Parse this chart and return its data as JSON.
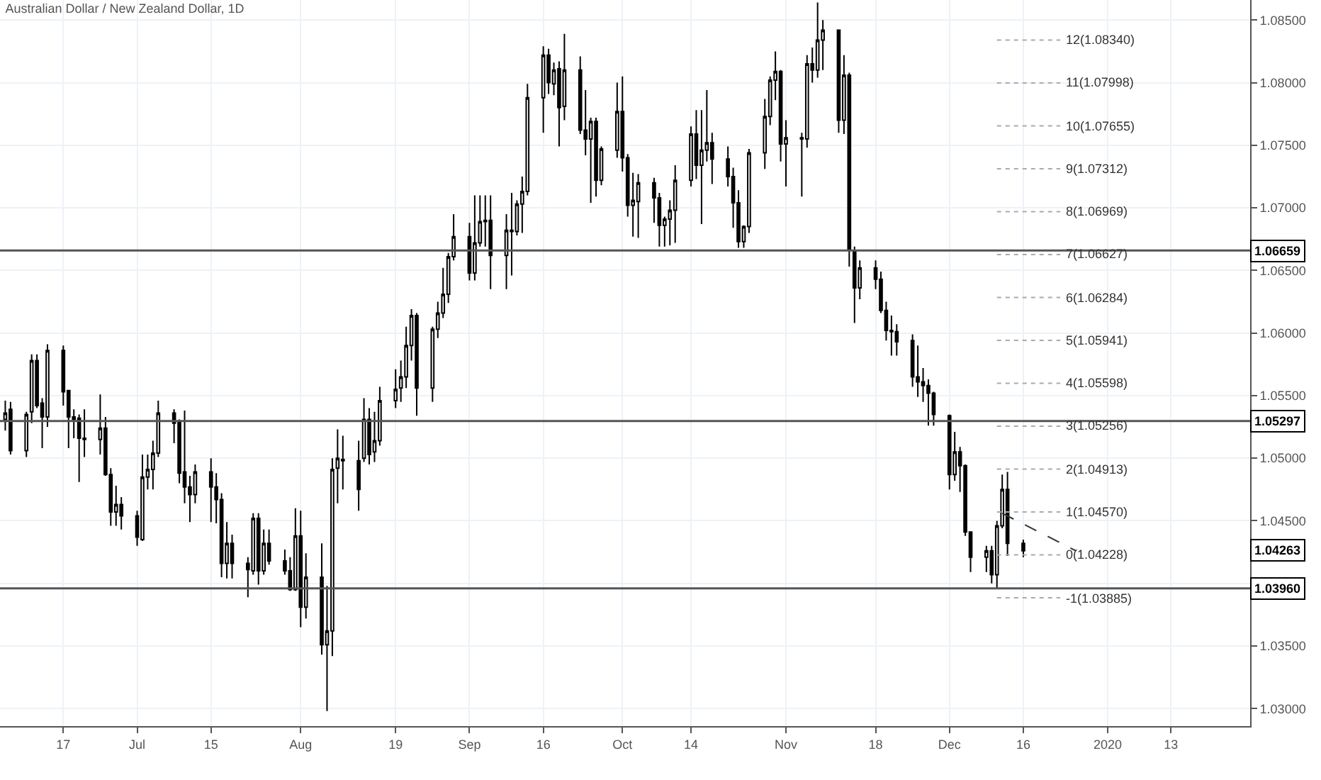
{
  "chart_data": {
    "type": "candlestick",
    "title": "Australian Dollar / New Zealand Dollar, 1D",
    "color": "#000000",
    "grid": true,
    "x": [
      "2019-06-06",
      "2019-06-07",
      "2019-06-10",
      "2019-06-11",
      "2019-06-12",
      "2019-06-13",
      "2019-06-14",
      "2019-06-17",
      "2019-06-18",
      "2019-06-19",
      "2019-06-20",
      "2019-06-21",
      "2019-06-24",
      "2019-06-25",
      "2019-06-26",
      "2019-06-27",
      "2019-06-28",
      "2019-07-01",
      "2019-07-02",
      "2019-07-03",
      "2019-07-04",
      "2019-07-05",
      "2019-07-08",
      "2019-07-09",
      "2019-07-10",
      "2019-07-11",
      "2019-07-12",
      "2019-07-15",
      "2019-07-16",
      "2019-07-17",
      "2019-07-18",
      "2019-07-19",
      "2019-07-22",
      "2019-07-23",
      "2019-07-24",
      "2019-07-25",
      "2019-07-26",
      "2019-07-29",
      "2019-07-30",
      "2019-07-31",
      "2019-08-01",
      "2019-08-02",
      "2019-08-05",
      "2019-08-06",
      "2019-08-07",
      "2019-08-08",
      "2019-08-09",
      "2019-08-12",
      "2019-08-13",
      "2019-08-14",
      "2019-08-15",
      "2019-08-16",
      "2019-08-19",
      "2019-08-20",
      "2019-08-21",
      "2019-08-22",
      "2019-08-23",
      "2019-08-26",
      "2019-08-27",
      "2019-08-28",
      "2019-08-29",
      "2019-08-30",
      "2019-09-02",
      "2019-09-03",
      "2019-09-04",
      "2019-09-05",
      "2019-09-06",
      "2019-09-09",
      "2019-09-10",
      "2019-09-11",
      "2019-09-12",
      "2019-09-13",
      "2019-09-16",
      "2019-09-17",
      "2019-09-18",
      "2019-09-19",
      "2019-09-20",
      "2019-09-23",
      "2019-09-24",
      "2019-09-25",
      "2019-09-26",
      "2019-09-27",
      "2019-09-30",
      "2019-10-01",
      "2019-10-02",
      "2019-10-03",
      "2019-10-04",
      "2019-10-07",
      "2019-10-08",
      "2019-10-09",
      "2019-10-10",
      "2019-10-11",
      "2019-10-14",
      "2019-10-15",
      "2019-10-16",
      "2019-10-17",
      "2019-10-18",
      "2019-10-21",
      "2019-10-22",
      "2019-10-23",
      "2019-10-24",
      "2019-10-25",
      "2019-10-28",
      "2019-10-29",
      "2019-10-30",
      "2019-10-31",
      "2019-11-01",
      "2019-11-04",
      "2019-11-05",
      "2019-11-06",
      "2019-11-07",
      "2019-11-08",
      "2019-11-11",
      "2019-11-12",
      "2019-11-13",
      "2019-11-14",
      "2019-11-15",
      "2019-11-18",
      "2019-11-19",
      "2019-11-20",
      "2019-11-21",
      "2019-11-22",
      "2019-11-25",
      "2019-11-26",
      "2019-11-27",
      "2019-11-28",
      "2019-11-29",
      "2019-12-02",
      "2019-12-03",
      "2019-12-04",
      "2019-12-05",
      "2019-12-06",
      "2019-12-09",
      "2019-12-10",
      "2019-12-11",
      "2019-12-12",
      "2019-12-13",
      "2019-12-16"
    ],
    "ohlc": [
      [
        1.0531,
        1.0546,
        1.0522,
        1.0536
      ],
      [
        1.0539,
        1.0545,
        1.0503,
        1.0506
      ],
      [
        1.0506,
        1.0537,
        1.0501,
        1.0535
      ],
      [
        1.0537,
        1.0583,
        1.0528,
        1.0578
      ],
      [
        1.0578,
        1.0583,
        1.054,
        1.0542
      ],
      [
        1.0544,
        1.0548,
        1.0508,
        1.0533
      ],
      [
        1.0533,
        1.0591,
        1.0525,
        1.0586
      ],
      [
        1.0586,
        1.059,
        1.0542,
        1.0553
      ],
      [
        1.0554,
        1.0554,
        1.0508,
        1.0533
      ],
      [
        1.0533,
        1.0539,
        1.0516,
        1.0531
      ],
      [
        1.0532,
        1.0535,
        1.0481,
        1.0516
      ],
      [
        1.0516,
        1.0539,
        1.0501,
        1.0515
      ],
      [
        1.0515,
        1.0551,
        1.0503,
        1.0524
      ],
      [
        1.0524,
        1.0533,
        1.0486,
        1.0487
      ],
      [
        1.0487,
        1.0492,
        1.0446,
        1.0457
      ],
      [
        1.0457,
        1.0478,
        1.0446,
        1.0463
      ],
      [
        1.0463,
        1.0469,
        1.0443,
        1.0454
      ],
      [
        1.0454,
        1.0458,
        1.043,
        1.0437
      ],
      [
        1.0435,
        1.0503,
        1.0434,
        1.0485
      ],
      [
        1.0485,
        1.0503,
        1.0475,
        1.0491
      ],
      [
        1.0491,
        1.0514,
        1.0475,
        1.0504
      ],
      [
        1.0504,
        1.0546,
        1.0501,
        1.0536
      ],
      [
        1.0536,
        1.0539,
        1.0512,
        1.0528
      ],
      [
        1.0529,
        1.0531,
        1.048,
        1.0488
      ],
      [
        1.0489,
        1.0538,
        1.0464,
        1.0477
      ],
      [
        1.0477,
        1.0486,
        1.0449,
        1.0471
      ],
      [
        1.0471,
        1.0495,
        1.0464,
        1.0489
      ],
      [
        1.0489,
        1.05,
        1.0449,
        1.0477
      ],
      [
        1.0477,
        1.0488,
        1.0448,
        1.0467
      ],
      [
        1.0467,
        1.0472,
        1.0405,
        1.0416
      ],
      [
        1.0416,
        1.0449,
        1.0404,
        1.0432
      ],
      [
        1.0432,
        1.0439,
        1.0404,
        1.0416
      ],
      [
        1.0416,
        1.0421,
        1.0389,
        1.0411
      ],
      [
        1.041,
        1.0456,
        1.0407,
        1.0452
      ],
      [
        1.0452,
        1.0456,
        1.0399,
        1.041
      ],
      [
        1.041,
        1.0443,
        1.0407,
        1.0432
      ],
      [
        1.0432,
        1.0443,
        1.0415,
        1.0418
      ],
      [
        1.0418,
        1.0427,
        1.0407,
        1.041
      ],
      [
        1.041,
        1.0421,
        1.0394,
        1.0395
      ],
      [
        1.0395,
        1.046,
        1.0394,
        1.0438
      ],
      [
        1.0438,
        1.0458,
        1.0365,
        1.0381
      ],
      [
        1.0381,
        1.0424,
        1.0372,
        1.0405
      ],
      [
        1.0405,
        1.0432,
        1.0343,
        1.0351
      ],
      [
        1.0351,
        1.0398,
        1.0298,
        1.0362
      ],
      [
        1.0362,
        1.05,
        1.0342,
        1.0491
      ],
      [
        1.0492,
        1.0523,
        1.0464,
        1.05
      ],
      [
        1.0499,
        1.0518,
        1.0475,
        1.0498
      ],
      [
        1.0498,
        1.0514,
        1.0458,
        1.0475
      ],
      [
        1.05,
        1.0548,
        1.0497,
        1.0531
      ],
      [
        1.0531,
        1.054,
        1.0495,
        1.0503
      ],
      [
        1.0505,
        1.0537,
        1.0497,
        1.0514
      ],
      [
        1.0514,
        1.0557,
        1.051,
        1.0546
      ],
      [
        1.0546,
        1.0571,
        1.054,
        1.0555
      ],
      [
        1.0556,
        1.0578,
        1.0545,
        1.0565
      ],
      [
        1.0565,
        1.0605,
        1.0556,
        1.059
      ],
      [
        1.059,
        1.0619,
        1.0578,
        1.0614
      ],
      [
        1.0614,
        1.0616,
        1.0534,
        1.0556
      ],
      [
        1.0556,
        1.0605,
        1.0545,
        1.0603
      ],
      [
        1.0603,
        1.0625,
        1.0596,
        1.0616
      ],
      [
        1.0616,
        1.0652,
        1.0612,
        1.0631
      ],
      [
        1.0631,
        1.0664,
        1.0624,
        1.0661
      ],
      [
        1.0661,
        1.0695,
        1.0658,
        1.0677
      ],
      [
        1.0677,
        1.0688,
        1.0642,
        1.0648
      ],
      [
        1.0648,
        1.071,
        1.0642,
        1.0672
      ],
      [
        1.0672,
        1.071,
        1.0669,
        1.0689
      ],
      [
        1.069,
        1.071,
        1.0669,
        1.0689
      ],
      [
        1.069,
        1.071,
        1.0635,
        1.0662
      ],
      [
        1.0662,
        1.0695,
        1.0635,
        1.0682
      ],
      [
        1.0682,
        1.0712,
        1.0646,
        1.0681
      ],
      [
        1.0681,
        1.0706,
        1.0678,
        1.0703
      ],
      [
        1.0703,
        1.0725,
        1.068,
        1.0713
      ],
      [
        1.0713,
        1.0799,
        1.071,
        1.0788
      ],
      [
        1.0788,
        1.0829,
        1.076,
        1.0822
      ],
      [
        1.0822,
        1.0827,
        1.0791,
        1.08
      ],
      [
        1.0799,
        1.0816,
        1.079,
        1.081
      ],
      [
        1.0811,
        1.0817,
        1.0749,
        1.078
      ],
      [
        1.0781,
        1.0839,
        1.077,
        1.081
      ],
      [
        1.081,
        1.0821,
        1.0759,
        1.0762
      ],
      [
        1.0762,
        1.0794,
        1.0742,
        1.0755
      ],
      [
        1.0755,
        1.0772,
        1.0704,
        1.0769
      ],
      [
        1.0769,
        1.0772,
        1.0709,
        1.0722
      ],
      [
        1.0722,
        1.0749,
        1.0718,
        1.0747
      ],
      [
        1.0746,
        1.08,
        1.074,
        1.0777
      ],
      [
        1.0777,
        1.0805,
        1.0729,
        1.074
      ],
      [
        1.074,
        1.0743,
        1.0693,
        1.0702
      ],
      [
        1.0702,
        1.0728,
        1.0677,
        1.0706
      ],
      [
        1.0705,
        1.0727,
        1.0676,
        1.072
      ],
      [
        1.072,
        1.0724,
        1.0688,
        1.0708
      ],
      [
        1.0708,
        1.0712,
        1.0669,
        1.0686
      ],
      [
        1.0686,
        1.0693,
        1.0669,
        1.0691
      ],
      [
        1.0691,
        1.0706,
        1.067,
        1.0698
      ],
      [
        1.0698,
        1.0734,
        1.0672,
        1.0722
      ],
      [
        1.0722,
        1.0765,
        1.0717,
        1.0759
      ],
      [
        1.0759,
        1.0778,
        1.0723,
        1.0734
      ],
      [
        1.0734,
        1.0778,
        1.0687,
        1.0746
      ],
      [
        1.0746,
        1.0794,
        1.0737,
        1.0752
      ],
      [
        1.0752,
        1.076,
        1.0719,
        1.0739
      ],
      [
        1.0739,
        1.0749,
        1.0717,
        1.0725
      ],
      [
        1.0725,
        1.0732,
        1.0684,
        1.0704
      ],
      [
        1.0704,
        1.0714,
        1.0668,
        1.0673
      ],
      [
        1.0673,
        1.0686,
        1.0668,
        1.0685
      ],
      [
        1.0685,
        1.0747,
        1.068,
        1.0744
      ],
      [
        1.0744,
        1.0787,
        1.0731,
        1.0773
      ],
      [
        1.0773,
        1.0805,
        1.0766,
        1.0802
      ],
      [
        1.0802,
        1.0825,
        1.0786,
        1.0809
      ],
      [
        1.0809,
        1.081,
        1.0737,
        1.0751
      ],
      [
        1.0751,
        1.077,
        1.0717,
        1.0756
      ],
      [
        1.0756,
        1.076,
        1.0709,
        1.0755
      ],
      [
        1.0755,
        1.0822,
        1.0748,
        1.0815
      ],
      [
        1.0815,
        1.0828,
        1.08,
        1.081
      ],
      [
        1.081,
        1.0864,
        1.0804,
        1.0834
      ],
      [
        1.0834,
        1.085,
        1.081,
        1.0842
      ],
      [
        1.0842,
        1.0842,
        1.076,
        1.077
      ],
      [
        1.077,
        1.0822,
        1.0759,
        1.0806
      ],
      [
        1.0806,
        1.0808,
        1.0653,
        1.0666
      ],
      [
        1.0666,
        1.0669,
        1.0608,
        1.0636
      ],
      [
        1.0636,
        1.0658,
        1.0627,
        1.0652
      ],
      [
        1.0652,
        1.0658,
        1.0635,
        1.0643
      ],
      [
        1.0643,
        1.0649,
        1.0616,
        1.0618
      ],
      [
        1.0618,
        1.0625,
        1.0594,
        1.0602
      ],
      [
        1.0602,
        1.0614,
        1.0582,
        1.0601
      ],
      [
        1.0601,
        1.0607,
        1.0582,
        1.0593
      ],
      [
        1.0594,
        1.0599,
        1.0557,
        1.0565
      ],
      [
        1.0565,
        1.059,
        1.0549,
        1.0561
      ],
      [
        1.0561,
        1.0572,
        1.0545,
        1.0558
      ],
      [
        1.0558,
        1.0563,
        1.0526,
        1.0552
      ],
      [
        1.0552,
        1.0553,
        1.0526,
        1.0535
      ],
      [
        1.0534,
        1.0535,
        1.0475,
        1.0487
      ],
      [
        1.0487,
        1.0521,
        1.0482,
        1.0505
      ],
      [
        1.0505,
        1.0509,
        1.0473,
        1.0494
      ],
      [
        1.0494,
        1.0495,
        1.0438,
        1.0441
      ],
      [
        1.0441,
        1.0441,
        1.0409,
        1.0421
      ],
      [
        1.0421,
        1.043,
        1.0409,
        1.0426
      ],
      [
        1.0426,
        1.043,
        1.04,
        1.0407
      ],
      [
        1.0407,
        1.045,
        1.0396,
        1.0446
      ],
      [
        1.0446,
        1.0487,
        1.0444,
        1.0475
      ],
      [
        1.0475,
        1.0489,
        1.0422,
        1.0432
      ],
      [
        1.0432,
        1.0435,
        1.0421,
        1.0426
      ]
    ],
    "series": [
      {
        "type": "line",
        "x": [
          "2019-12-12",
          "2019-12-26"
        ],
        "values": [
          1.0456,
          1.0426
        ],
        "color": "#333333",
        "line_style": "dashed"
      },
      {
        "type": "line",
        "x": [
          "2019-12-11",
          "2019-12-23"
        ],
        "values": [
          1.0834,
          1.0834
        ],
        "color": "#aaaaaa",
        "line_style": "dotted"
      },
      {
        "type": "line",
        "x": [
          "2019-12-11",
          "2019-12-23"
        ],
        "values": [
          1.07998,
          1.07998
        ],
        "color": "#aaaaaa",
        "line_style": "dotted"
      },
      {
        "type": "line",
        "x": [
          "2019-12-11",
          "2019-12-23"
        ],
        "values": [
          1.07655,
          1.07655
        ],
        "color": "#aaaaaa",
        "line_style": "dotted"
      },
      {
        "type": "line",
        "x": [
          "2019-12-11",
          "2019-12-23"
        ],
        "values": [
          1.07312,
          1.07312
        ],
        "color": "#aaaaaa",
        "line_style": "dotted"
      },
      {
        "type": "line",
        "x": [
          "2019-12-11",
          "2019-12-23"
        ],
        "values": [
          1.06969,
          1.06969
        ],
        "color": "#aaaaaa",
        "line_style": "dotted"
      },
      {
        "type": "line",
        "x": [
          "2019-12-11",
          "2019-12-23"
        ],
        "values": [
          1.06627,
          1.06627
        ],
        "color": "#aaaaaa",
        "line_style": "dotted"
      },
      {
        "type": "line",
        "x": [
          "2019-12-11",
          "2019-12-23"
        ],
        "values": [
          1.06284,
          1.06284
        ],
        "color": "#aaaaaa",
        "line_style": "dotted"
      },
      {
        "type": "line",
        "x": [
          "2019-12-11",
          "2019-12-23"
        ],
        "values": [
          1.05941,
          1.05941
        ],
        "color": "#aaaaaa",
        "line_style": "dotted"
      },
      {
        "type": "line",
        "x": [
          "2019-12-11",
          "2019-12-23"
        ],
        "values": [
          1.05598,
          1.05598
        ],
        "color": "#aaaaaa",
        "line_style": "dotted"
      },
      {
        "type": "line",
        "x": [
          "2019-12-11",
          "2019-12-23"
        ],
        "values": [
          1.05256,
          1.05256
        ],
        "color": "#aaaaaa",
        "line_style": "dotted"
      },
      {
        "type": "line",
        "x": [
          "2019-12-11",
          "2019-12-23"
        ],
        "values": [
          1.04913,
          1.04913
        ],
        "color": "#aaaaaa",
        "line_style": "dotted"
      },
      {
        "type": "line",
        "x": [
          "2019-12-11",
          "2019-12-23"
        ],
        "values": [
          1.0457,
          1.0457
        ],
        "color": "#aaaaaa",
        "line_style": "dotted"
      },
      {
        "type": "line",
        "x": [
          "2019-12-11",
          "2019-12-23"
        ],
        "values": [
          1.04228,
          1.04228
        ],
        "color": "#aaaaaa",
        "line_style": "dotted"
      },
      {
        "type": "line",
        "x": [
          "2019-12-11",
          "2019-12-23"
        ],
        "values": [
          1.03885,
          1.03885
        ],
        "color": "#aaaaaa",
        "line_style": "dotted"
      }
    ],
    "xlim": [
      "2019-06-05",
      "2020-01-28"
    ],
    "xticks": [
      {
        "value": "2019-06-17",
        "label": "17"
      },
      {
        "value": "2019-07-01",
        "label": "Jul"
      },
      {
        "value": "2019-07-15",
        "label": "15"
      },
      {
        "value": "2019-08-01",
        "label": "Aug"
      },
      {
        "value": "2019-08-19",
        "label": "19"
      },
      {
        "value": "2019-09-02",
        "label": "Sep"
      },
      {
        "value": "2019-09-16",
        "label": "16"
      },
      {
        "value": "2019-10-01",
        "label": "Oct"
      },
      {
        "value": "2019-10-14",
        "label": "14"
      },
      {
        "value": "2019-11-01",
        "label": "Nov"
      },
      {
        "value": "2019-11-18",
        "label": "18"
      },
      {
        "value": "2019-12-02",
        "label": "Dec"
      },
      {
        "value": "2019-12-16",
        "label": "16"
      },
      {
        "value": "2020-01-01",
        "label": "2020"
      },
      {
        "value": "2020-01-13",
        "label": "13"
      }
    ],
    "ylim": [
      1.0286,
      1.0866
    ],
    "yticks": [
      {
        "value": 1.03,
        "label": "1.03000"
      },
      {
        "value": 1.035,
        "label": "1.03500"
      },
      {
        "value": 1.04,
        "label": null
      },
      {
        "value": 1.045,
        "label": "1.04500"
      },
      {
        "value": 1.05,
        "label": "1.05000"
      },
      {
        "value": 1.055,
        "label": "1.05500"
      },
      {
        "value": 1.06,
        "label": "1.06000"
      },
      {
        "value": 1.065,
        "label": "1.06500"
      },
      {
        "value": 1.07,
        "label": "1.07000"
      },
      {
        "value": 1.075,
        "label": "1.07500"
      },
      {
        "value": 1.08,
        "label": "1.08000"
      },
      {
        "value": 1.085,
        "label": "1.08500"
      }
    ],
    "ref_lines": [
      {
        "axis": "y",
        "value": 1.06659,
        "label": "1.06659",
        "color": "#555555"
      },
      {
        "axis": "y",
        "value": 1.05297,
        "label": "1.05297",
        "color": "#555555"
      },
      {
        "axis": "y",
        "value": 1.0396,
        "label": "1.03960",
        "color": "#555555"
      }
    ],
    "annotations": [
      {
        "text": "1.04263",
        "y": 1.04263
      },
      {
        "text": "12(1.08340)",
        "x": "2019-12-23",
        "y": 1.0834
      },
      {
        "text": "11(1.07998)",
        "x": "2019-12-23",
        "y": 1.07998
      },
      {
        "text": "10(1.07655)",
        "x": "2019-12-23",
        "y": 1.07655
      },
      {
        "text": "9(1.07312)",
        "x": "2019-12-23",
        "y": 1.07312
      },
      {
        "text": "8(1.06969)",
        "x": "2019-12-23",
        "y": 1.06969
      },
      {
        "text": "7(1.06627)",
        "x": "2019-12-23",
        "y": 1.06627
      },
      {
        "text": "6(1.06284)",
        "x": "2019-12-23",
        "y": 1.06284
      },
      {
        "text": "5(1.05941)",
        "x": "2019-12-23",
        "y": 1.05941
      },
      {
        "text": "4(1.05598)",
        "x": "2019-12-23",
        "y": 1.05598
      },
      {
        "text": "3(1.05256)",
        "x": "2019-12-23",
        "y": 1.05256
      },
      {
        "text": "2(1.04913)",
        "x": "2019-12-23",
        "y": 1.04913
      },
      {
        "text": "1(1.04570)",
        "x": "2019-12-23",
        "y": 1.0457
      },
      {
        "text": "0(1.04228)",
        "x": "2019-12-23",
        "y": 1.04228
      },
      {
        "text": "-1(1.03885)",
        "x": "2019-12-23",
        "y": 1.03885
      }
    ]
  }
}
